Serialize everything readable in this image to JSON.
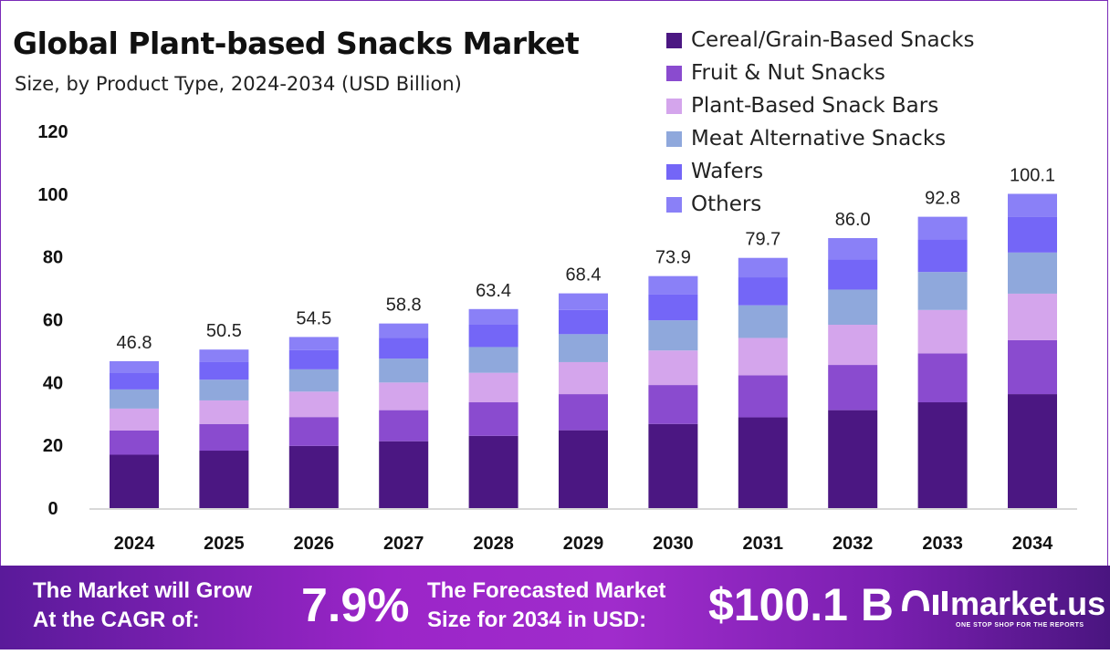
{
  "chart_data": {
    "type": "bar",
    "stacked": true,
    "title": "Global Plant-based Snacks Market",
    "subtitle": "Size, by Product Type, 2024-2034 (USD Billion)",
    "categories": [
      "2024",
      "2025",
      "2026",
      "2027",
      "2028",
      "2029",
      "2030",
      "2031",
      "2032",
      "2033",
      "2034"
    ],
    "totals": [
      "46.8",
      "50.5",
      "54.5",
      "58.8",
      "63.4",
      "68.4",
      "73.9",
      "79.7",
      "86.0",
      "92.8",
      "100.1"
    ],
    "series": [
      {
        "name": "Cereal/Grain-Based Snacks",
        "color": "#4b1782",
        "values": [
          17.0,
          18.3,
          19.8,
          21.3,
          23.0,
          24.8,
          26.8,
          28.9,
          31.2,
          33.7,
          36.3
        ]
      },
      {
        "name": "Fruit & Nut Snacks",
        "color": "#8a4bcf",
        "values": [
          7.7,
          8.5,
          9.2,
          9.9,
          10.7,
          11.5,
          12.4,
          13.4,
          14.4,
          15.6,
          17.2
        ]
      },
      {
        "name": "Plant-Based Snack Bars",
        "color": "#d4a5ec",
        "values": [
          7.0,
          7.5,
          8.1,
          8.8,
          9.4,
          10.2,
          11.0,
          11.9,
          12.8,
          13.8,
          14.8
        ]
      },
      {
        "name": "Meat Alternative Snacks",
        "color": "#8fa8dc",
        "values": [
          6.1,
          6.6,
          7.1,
          7.6,
          8.2,
          8.9,
          9.6,
          10.4,
          11.2,
          12.1,
          13.1
        ]
      },
      {
        "name": "Wafers",
        "color": "#7466f7",
        "values": [
          5.2,
          5.7,
          6.1,
          6.6,
          7.1,
          7.7,
          8.3,
          8.9,
          9.6,
          10.4,
          11.3
        ]
      },
      {
        "name": "Others",
        "color": "#8a80f7",
        "values": [
          3.8,
          3.9,
          4.2,
          4.6,
          5.0,
          5.3,
          5.8,
          6.2,
          6.8,
          7.2,
          7.4
        ]
      }
    ],
    "ylim": [
      0,
      120
    ],
    "yticks": [
      "0",
      "20",
      "40",
      "60",
      "80",
      "100",
      "120"
    ],
    "grid": false,
    "legend_position": "top-right"
  },
  "footer": {
    "cagr_label_1": "The Market will Grow",
    "cagr_label_2": "At the CAGR of:",
    "cagr_value": "7.9%",
    "forecast_label_1": "The Forecasted Market",
    "forecast_label_2": "Size for 2034 in USD:",
    "forecast_value": "$100.1 B",
    "logo_text": "market.us",
    "logo_tagline": "ONE STOP SHOP FOR THE REPORTS",
    "gradient_color": "#9b25c8"
  }
}
